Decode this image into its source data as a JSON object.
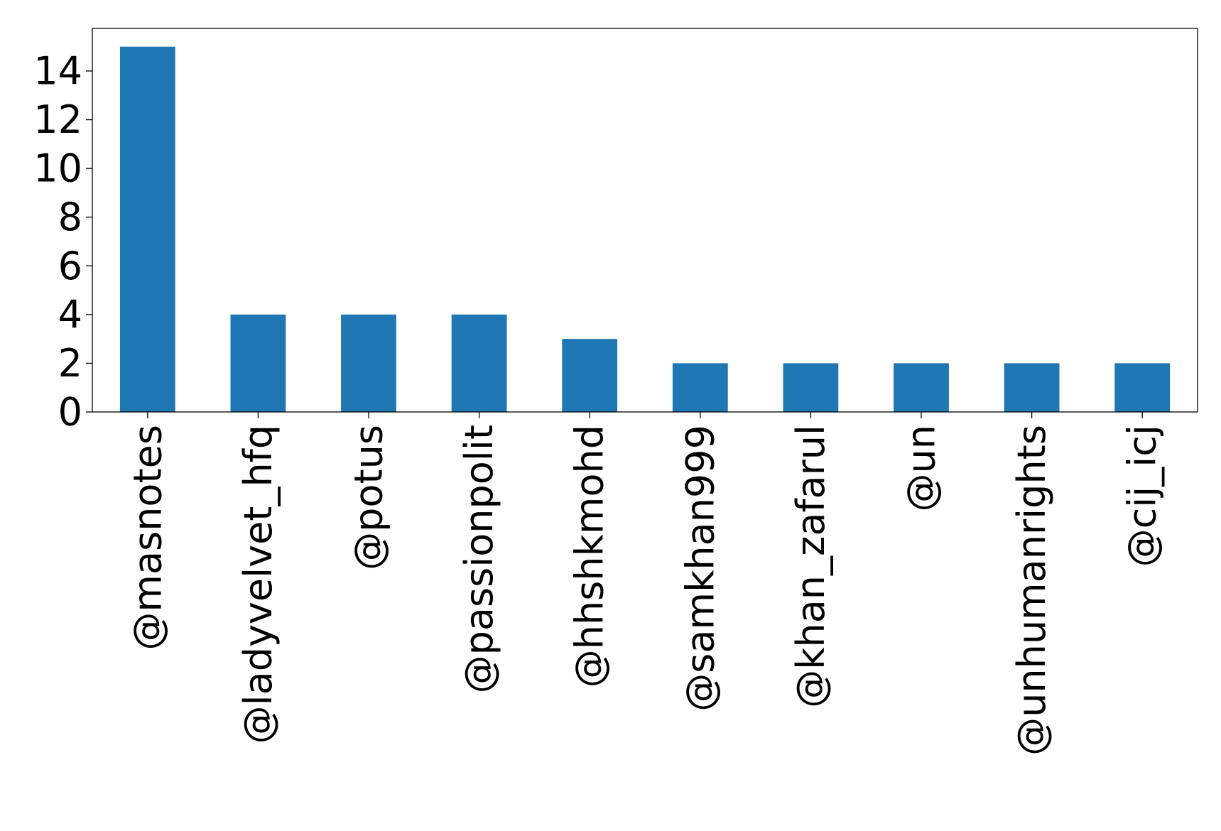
{
  "chart_data": {
    "type": "bar",
    "categories": [
      "@masnotes",
      "@ladyvelvet_hfq",
      "@potus",
      "@passionpolit",
      "@hhshkmohd",
      "@samkhan999",
      "@khan_zafarul",
      "@un",
      "@unhumanrights",
      "@cij_icj"
    ],
    "values": [
      15,
      4,
      4,
      4,
      3,
      2,
      2,
      2,
      2,
      2
    ],
    "yticks": [
      0,
      2,
      4,
      6,
      8,
      10,
      12,
      14
    ],
    "ylim": [
      0,
      15.75
    ],
    "bar_color": "#1f77b4",
    "grid": false,
    "legend": "none"
  }
}
